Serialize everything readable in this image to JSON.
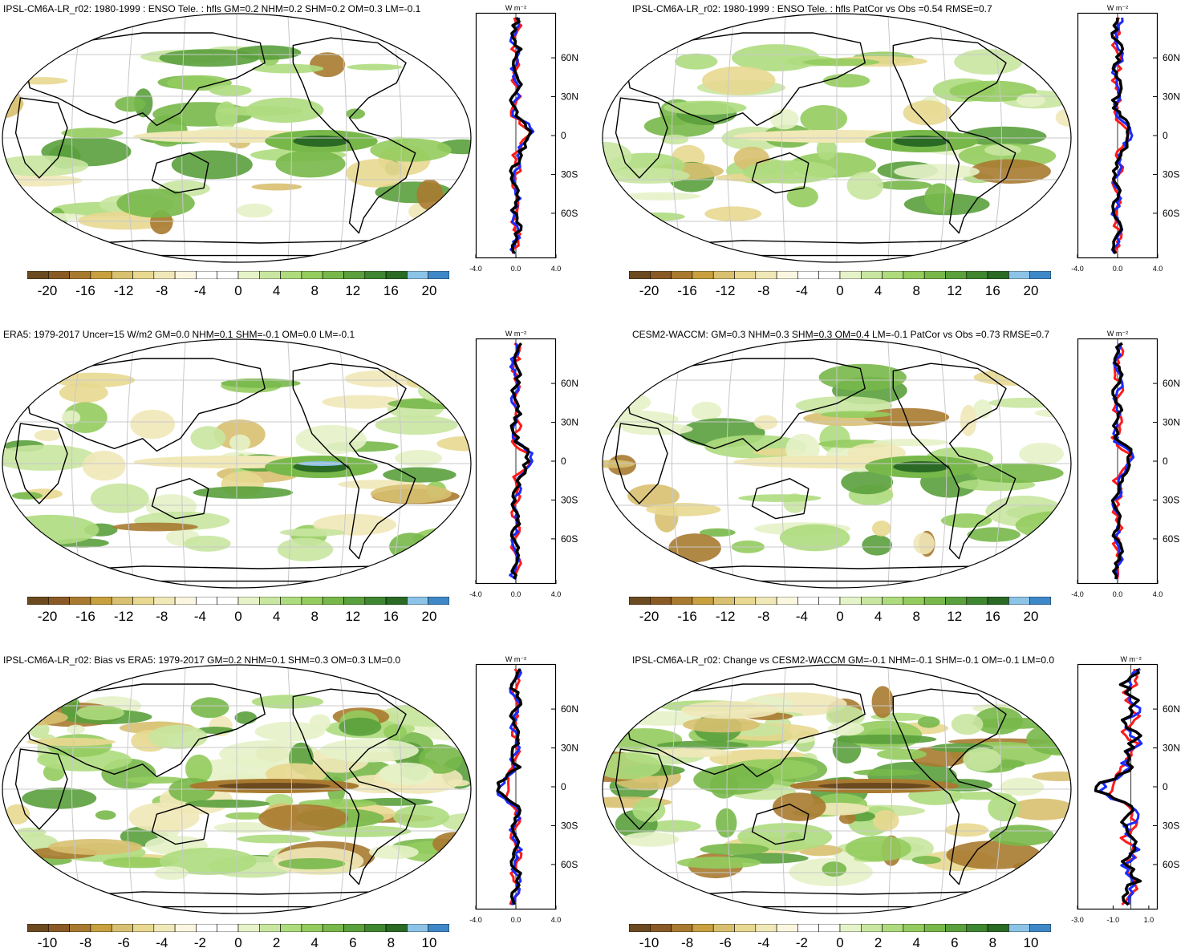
{
  "panels": [
    {
      "id": "p1",
      "title": "IPSL-CM6A-LR_r02: 1980-1999 : ENSO Tele. : hfls GM=0.2 NHM=0.2 SHM=0.2 OM=0.3 LM=-0.1",
      "colorbar_labels": [
        "-20",
        "-16",
        "-12",
        "-8",
        "-4",
        "0",
        "4",
        "8",
        "12",
        "16",
        "20"
      ],
      "zonal_xticks": [
        "-4.0",
        "0.0",
        "4.0"
      ],
      "zonal_xlim": [
        -4,
        4
      ]
    },
    {
      "id": "p2",
      "title": "IPSL-CM6A-LR_r02: 1980-1999 : ENSO Tele. : hfls PatCor vs Obs =0.54 RMSE=0.7",
      "colorbar_labels": [
        "-20",
        "-16",
        "-12",
        "-8",
        "-4",
        "0",
        "4",
        "8",
        "12",
        "16",
        "20"
      ],
      "zonal_xticks": [
        "-4.0",
        "0.0",
        "4.0"
      ],
      "zonal_xlim": [
        -4,
        4
      ]
    },
    {
      "id": "p3",
      "title": "ERA5: 1979-2017 Uncer=15 W/m2 GM=0.0 NHM=0.1 SHM=-0.1 OM=0.0 LM=-0.1",
      "colorbar_labels": [
        "-20",
        "-16",
        "-12",
        "-8",
        "-4",
        "0",
        "4",
        "8",
        "12",
        "16",
        "20"
      ],
      "zonal_xticks": [
        "-4.0",
        "0.0",
        "4.0"
      ],
      "zonal_xlim": [
        -4,
        4
      ]
    },
    {
      "id": "p4",
      "title": "CESM2-WACCM: GM=0.3 NHM=0.3 SHM=0.3 OM=0.4 LM=-0.1 PatCor vs Obs =0.73 RMSE=0.7",
      "colorbar_labels": [
        "-20",
        "-16",
        "-12",
        "-8",
        "-4",
        "0",
        "4",
        "8",
        "12",
        "16",
        "20"
      ],
      "zonal_xticks": [
        "-4.0",
        "0.0",
        "4.0"
      ],
      "zonal_xlim": [
        -4,
        4
      ]
    },
    {
      "id": "p5",
      "title": "IPSL-CM6A-LR_r02: Bias vs ERA5: 1979-2017 GM=0.2 NHM=0.1 SHM=0.3 OM=0.3 LM=0.0",
      "colorbar_labels": [
        "-10",
        "-8",
        "-6",
        "-4",
        "-2",
        "0",
        "2",
        "4",
        "6",
        "8",
        "10"
      ],
      "zonal_xticks": [
        "-4.0",
        "0.0",
        "4.0"
      ],
      "zonal_xlim": [
        -4,
        4
      ]
    },
    {
      "id": "p6",
      "title": "IPSL-CM6A-LR_r02: Change vs CESM2-WACCM GM=-0.1 NHM=-0.1 SHM=-0.1 OM=-0.1 LM=0.0",
      "colorbar_labels": [
        "-10",
        "-8",
        "-6",
        "-4",
        "-2",
        "0",
        "2",
        "4",
        "6",
        "8",
        "10"
      ],
      "zonal_xticks": [
        "-3.0",
        "-1.0",
        "1.0"
      ],
      "zonal_xlim": [
        -3,
        1.5
      ]
    }
  ],
  "zonal_units": "W m⁻²",
  "zonal_yticks": [
    "60N",
    "30N",
    "0",
    "30S",
    "60S"
  ],
  "colormap": [
    "#6b4a1f",
    "#8a5a25",
    "#a87a30",
    "#c8a040",
    "#d8c070",
    "#e8d890",
    "#f1e8b8",
    "#faf6e0",
    "#ffffff",
    "#ffffff",
    "#e6f2c8",
    "#c8e6a0",
    "#aedb7e",
    "#94cc5e",
    "#78b84a",
    "#5aa03c",
    "#3f8630",
    "#2a6a24",
    "#8cc4e8",
    "#3f88c8"
  ],
  "chart_data": [
    {
      "type": "heatmap",
      "title": "IPSL-CM6A-LR_r02: 1980-1999 : ENSO Tele. : hfls GM=0.2 NHM=0.2 SHM=0.2 OM=0.3 LM=-0.1",
      "clim": [
        -20,
        20
      ],
      "zonal_series": [
        {
          "color": "red"
        },
        {
          "color": "blue"
        },
        {
          "color": "black"
        }
      ]
    },
    {
      "type": "heatmap",
      "title": "IPSL-CM6A-LR_r02: 1980-1999 : ENSO Tele. : hfls PatCor vs Obs =0.54 RMSE=0.7",
      "clim": [
        -20,
        20
      ]
    },
    {
      "type": "heatmap",
      "title": "ERA5: 1979-2017 Uncer=15 W/m2 GM=0.0 NHM=0.1 SHM=-0.1 OM=0.0 LM=-0.1",
      "clim": [
        -20,
        20
      ]
    },
    {
      "type": "heatmap",
      "title": "CESM2-WACCM: GM=0.3 NHM=0.3 SHM=0.3 OM=0.4 LM=-0.1 PatCor vs Obs =0.73 RMSE=0.7",
      "clim": [
        -20,
        20
      ]
    },
    {
      "type": "heatmap",
      "title": "IPSL-CM6A-LR_r02: Bias vs ERA5: 1979-2017 GM=0.2 NHM=0.1 SHM=0.3 OM=0.3 LM=0.0",
      "clim": [
        -10,
        10
      ]
    },
    {
      "type": "heatmap",
      "title": "IPSL-CM6A-LR_r02: Change vs CESM2-WACCM GM=-0.1 NHM=-0.1 SHM=-0.1 OM=-0.1 LM=0.0",
      "clim": [
        -10,
        10
      ]
    }
  ]
}
